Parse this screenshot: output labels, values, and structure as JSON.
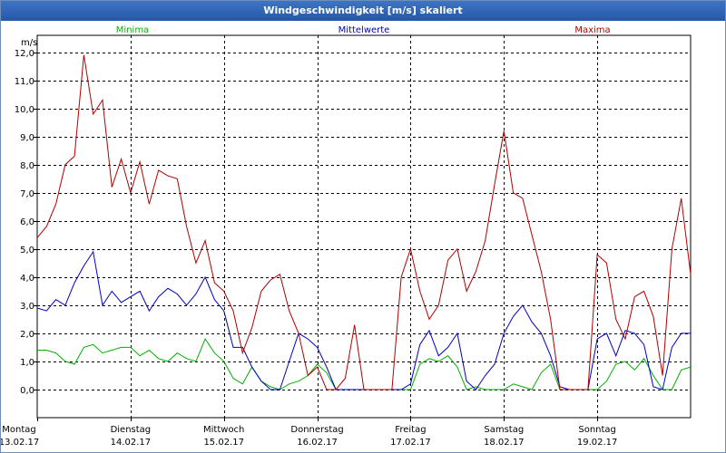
{
  "window": {
    "title": "Windgeschwindigkeit [m/s] skaliert"
  },
  "chart_data": {
    "type": "line",
    "title": "Windgeschwindigkeit [m/s] skaliert",
    "ylabel": "m/s",
    "ylim": [
      -1.0,
      12.6
    ],
    "xlim": [
      0,
      7
    ],
    "yticks": [
      0,
      1,
      2,
      3,
      4,
      5,
      6,
      7,
      8,
      9,
      10,
      11,
      12
    ],
    "ytick_labels": [
      "0,0",
      "1,0",
      "2,0",
      "3,0",
      "4,0",
      "5,0",
      "6,0",
      "7,0",
      "8,0",
      "9,0",
      "10,0",
      "11,0",
      "12,0"
    ],
    "day_ticks": [
      {
        "day": "Montag",
        "date": "13.02.17"
      },
      {
        "day": "Dienstag",
        "date": "14.02.17"
      },
      {
        "day": "Mittwoch",
        "date": "15.02.17"
      },
      {
        "day": "Donnerstag",
        "date": "16.02.17"
      },
      {
        "day": "Freitag",
        "date": "17.02.17"
      },
      {
        "day": "Samstag",
        "date": "18.02.17"
      },
      {
        "day": "Sonntag",
        "date": "19.02.17"
      }
    ],
    "legend": [
      {
        "name": "Minima",
        "color": "#00b000"
      },
      {
        "name": "Mittelwerte",
        "color": "#0000c0"
      },
      {
        "name": "Maxima",
        "color": "#b00000"
      }
    ],
    "series": [
      {
        "name": "Minima",
        "color": "#00b000",
        "x": [
          0,
          0.1,
          0.2,
          0.3,
          0.4,
          0.5,
          0.6,
          0.7,
          0.8,
          0.9,
          1,
          1.1,
          1.2,
          1.3,
          1.4,
          1.5,
          1.6,
          1.7,
          1.8,
          1.9,
          2,
          2.1,
          2.2,
          2.3,
          2.4,
          2.5,
          2.6,
          2.7,
          2.8,
          2.9,
          3,
          3.1,
          3.2,
          3.3,
          3.4,
          3.5,
          3.6,
          3.7,
          3.8,
          3.9,
          4,
          4.1,
          4.2,
          4.3,
          4.4,
          4.5,
          4.6,
          4.7,
          4.8,
          4.9,
          5,
          5.1,
          5.2,
          5.3,
          5.4,
          5.5,
          5.6,
          5.7,
          5.8,
          5.9,
          6,
          6.1,
          6.2,
          6.3,
          6.4,
          6.5,
          6.6,
          6.7,
          6.8,
          6.9,
          7
        ],
        "y": [
          1.4,
          1.4,
          1.3,
          1.0,
          0.9,
          1.5,
          1.6,
          1.3,
          1.4,
          1.5,
          1.5,
          1.2,
          1.4,
          1.1,
          1.0,
          1.3,
          1.1,
          1.0,
          1.8,
          1.3,
          1.0,
          0.4,
          0.2,
          0.8,
          0.3,
          0.1,
          0.0,
          0.2,
          0.3,
          0.5,
          0.9,
          0.6,
          0.0,
          0.0,
          0.0,
          0.0,
          0.0,
          0.0,
          0.0,
          0.0,
          0.0,
          0.9,
          1.1,
          1.0,
          1.2,
          0.8,
          0.0,
          0.1,
          0.0,
          0.0,
          0.0,
          0.2,
          0.1,
          0.0,
          0.6,
          0.9,
          0.0,
          0.0,
          0.0,
          0.0,
          0.0,
          0.3,
          0.9,
          1.0,
          0.7,
          1.1,
          0.5,
          0.0,
          0.0,
          0.7,
          0.8
        ]
      },
      {
        "name": "Mittelwerte",
        "color": "#0000c0",
        "x": [
          0,
          0.1,
          0.2,
          0.3,
          0.4,
          0.5,
          0.6,
          0.7,
          0.8,
          0.9,
          1,
          1.1,
          1.2,
          1.3,
          1.4,
          1.5,
          1.6,
          1.7,
          1.8,
          1.9,
          2,
          2.1,
          2.2,
          2.3,
          2.4,
          2.5,
          2.6,
          2.7,
          2.8,
          2.9,
          3,
          3.1,
          3.2,
          3.3,
          3.4,
          3.5,
          3.6,
          3.7,
          3.8,
          3.9,
          4,
          4.1,
          4.2,
          4.3,
          4.4,
          4.5,
          4.6,
          4.7,
          4.8,
          4.9,
          5,
          5.1,
          5.2,
          5.3,
          5.4,
          5.5,
          5.6,
          5.7,
          5.8,
          5.9,
          6,
          6.1,
          6.2,
          6.3,
          6.4,
          6.5,
          6.6,
          6.7,
          6.8,
          6.9,
          7
        ],
        "y": [
          2.9,
          2.8,
          3.2,
          3.0,
          3.8,
          4.4,
          4.9,
          3.0,
          3.5,
          3.1,
          3.3,
          3.5,
          2.8,
          3.3,
          3.6,
          3.4,
          3.0,
          3.4,
          4.0,
          3.2,
          2.8,
          1.5,
          1.5,
          0.8,
          0.3,
          0.0,
          0.0,
          1.0,
          2.0,
          1.8,
          1.5,
          0.8,
          0.0,
          0.0,
          0.0,
          0.0,
          0.0,
          0.0,
          0.0,
          0.0,
          0.2,
          1.6,
          2.1,
          1.2,
          1.5,
          2.0,
          0.3,
          0.0,
          0.5,
          0.9,
          2.0,
          2.6,
          3.0,
          2.4,
          2.0,
          1.2,
          0.1,
          0.0,
          0.0,
          0.0,
          1.8,
          2.0,
          1.2,
          2.1,
          2.0,
          1.6,
          0.1,
          0.0,
          1.5,
          2.0,
          2.0
        ]
      },
      {
        "name": "Maxima",
        "color": "#b00000",
        "x": [
          0,
          0.1,
          0.2,
          0.3,
          0.4,
          0.5,
          0.6,
          0.7,
          0.8,
          0.9,
          1,
          1.1,
          1.2,
          1.3,
          1.4,
          1.5,
          1.6,
          1.7,
          1.8,
          1.9,
          2,
          2.1,
          2.2,
          2.3,
          2.4,
          2.5,
          2.6,
          2.7,
          2.8,
          2.9,
          3,
          3.1,
          3.2,
          3.3,
          3.4,
          3.5,
          3.6,
          3.7,
          3.8,
          3.9,
          4,
          4.1,
          4.2,
          4.3,
          4.4,
          4.5,
          4.6,
          4.7,
          4.8,
          4.9,
          5,
          5.1,
          5.2,
          5.3,
          5.4,
          5.5,
          5.6,
          5.7,
          5.8,
          5.9,
          6,
          6.1,
          6.2,
          6.3,
          6.4,
          6.5,
          6.6,
          6.7,
          6.8,
          6.9,
          7
        ],
        "y": [
          5.4,
          5.8,
          6.6,
          8.0,
          8.3,
          11.9,
          9.8,
          10.3,
          7.2,
          8.2,
          7.0,
          8.1,
          6.6,
          7.8,
          7.6,
          7.5,
          5.8,
          4.5,
          5.3,
          3.8,
          3.5,
          2.8,
          1.3,
          2.2,
          3.5,
          3.9,
          4.1,
          2.8,
          2.0,
          0.5,
          0.8,
          0.0,
          0.0,
          0.4,
          2.3,
          0.0,
          0.0,
          0.0,
          0.0,
          4.0,
          5.0,
          3.5,
          2.5,
          3.0,
          4.6,
          5.0,
          3.5,
          4.2,
          5.3,
          7.3,
          9.2,
          7.0,
          6.8,
          5.5,
          4.2,
          2.5,
          0.0,
          0.0,
          0.0,
          0.0,
          4.8,
          4.5,
          2.5,
          1.8,
          3.3,
          3.5,
          2.6,
          0.5,
          5.0,
          6.8,
          4.1
        ]
      }
    ]
  }
}
